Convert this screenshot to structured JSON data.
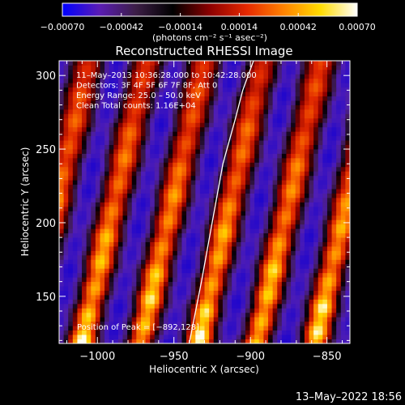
{
  "chart_data": {
    "type": "heatmap",
    "title": "Reconstructed RHESSI Image",
    "xlabel": "Heliocentric X (arcsec)",
    "ylabel": "Heliocentric Y (arcsec)",
    "xlim": [
      -1025,
      -835
    ],
    "ylim": [
      118,
      310
    ],
    "x_ticks": [
      -1000,
      -950,
      -900,
      -850
    ],
    "x_tick_labels": [
      "−1000",
      "−950",
      "−900",
      "−850"
    ],
    "y_ticks": [
      150,
      200,
      250,
      300
    ],
    "y_tick_labels": [
      "150",
      "200",
      "250",
      "300"
    ],
    "colorbar": {
      "range": [
        -0.0007,
        0.0007
      ],
      "ticks": [
        -0.0007,
        -0.00042,
        -0.00014,
        0.00014,
        0.00042,
        0.0007
      ],
      "tick_labels": [
        "−0.00070",
        "−0.00042",
        "−0.00014",
        "0.00014",
        "0.00042",
        "0.00070"
      ],
      "unit_label": "(photons cm⁻² s⁻¹ asec⁻²)",
      "colors": [
        "#0000ff",
        "#5a1cb4",
        "#3c1e46",
        "#000000",
        "#8c0000",
        "#e62800",
        "#ff8200",
        "#ffdc00",
        "#ffffff"
      ]
    },
    "annotations": [
      "11–May–2013 10:36:28.000 to 10:42:28.000",
      "Detectors: 3F 4F 5F 6F 7F 8F, Att 0",
      "Energy Range: 25.0 – 50.0 keV",
      "Clean      Total counts: 1.16E+04"
    ],
    "peak_label": "Position of Peak = [−892,128]",
    "peak_position": [
      -892,
      128
    ],
    "limb_curve": {
      "x": [
        -940,
        -932,
        -925,
        -918,
        -910,
        -905,
        -898
      ],
      "y": [
        118,
        160,
        200,
        240,
        270,
        290,
        310
      ]
    },
    "stripe_pattern": {
      "orientation": "diagonal",
      "period_arcsec_x": 38,
      "stripe_shift_per_arcsec_y": 0.22,
      "ridge_x_at_y_118": [
        -1010,
        -972,
        -934,
        -896,
        -858
      ]
    }
  },
  "footer": {
    "timestamp": "13–May–2022 18:56"
  }
}
